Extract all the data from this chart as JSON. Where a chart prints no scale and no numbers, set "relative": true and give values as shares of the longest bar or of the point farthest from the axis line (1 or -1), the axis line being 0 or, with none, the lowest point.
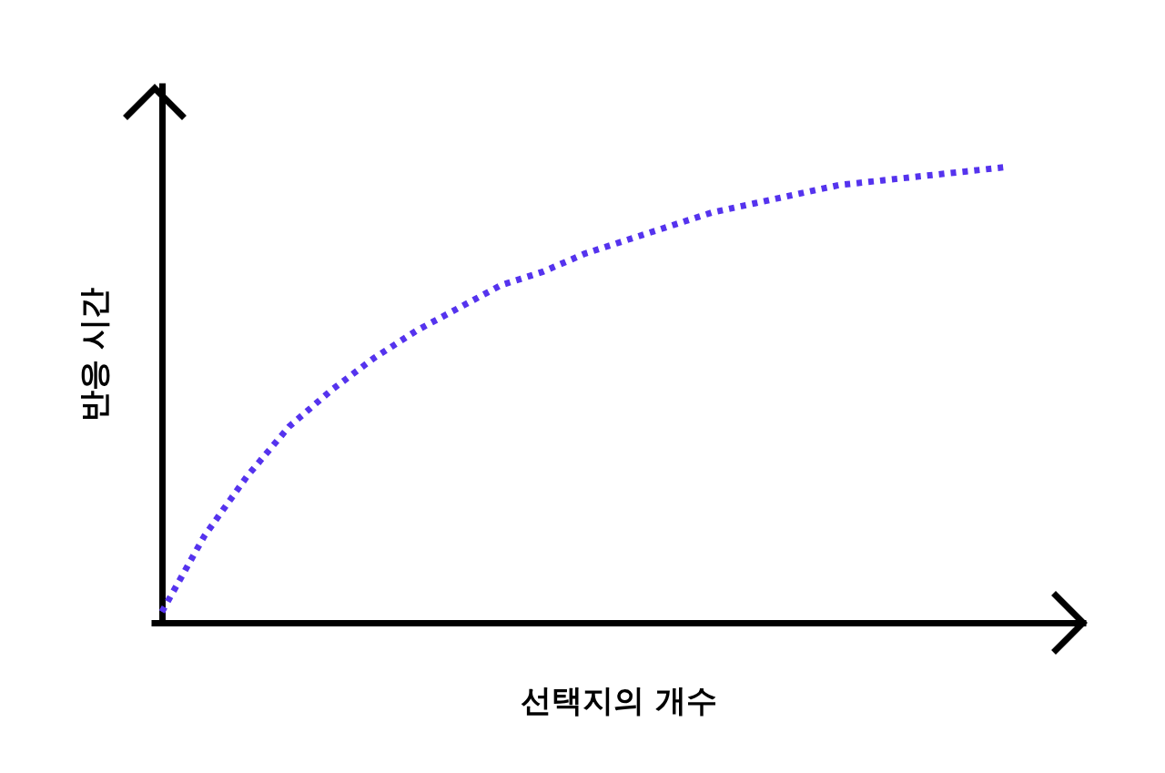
{
  "chart_data": {
    "type": "line",
    "relative": true,
    "xlabel": "선택지의 개수",
    "ylabel": "반응 시간",
    "categories": [
      null,
      null,
      null,
      null,
      null,
      null,
      null,
      null,
      null,
      null,
      null,
      null,
      null,
      null,
      null,
      null,
      null,
      null,
      null,
      null,
      null
    ],
    "series": [
      {
        "color": "#5533ee",
        "line_style": "dotted",
        "values": [
          0.024,
          0.19,
          0.32,
          0.43,
          0.51,
          0.58,
          0.64,
          0.69,
          0.74,
          0.77,
          0.81,
          0.84,
          0.87,
          0.9,
          0.92,
          0.94,
          0.96,
          0.97,
          0.98,
          0.99,
          1
        ]
      }
    ],
    "marker": "none",
    "grid": false
  }
}
